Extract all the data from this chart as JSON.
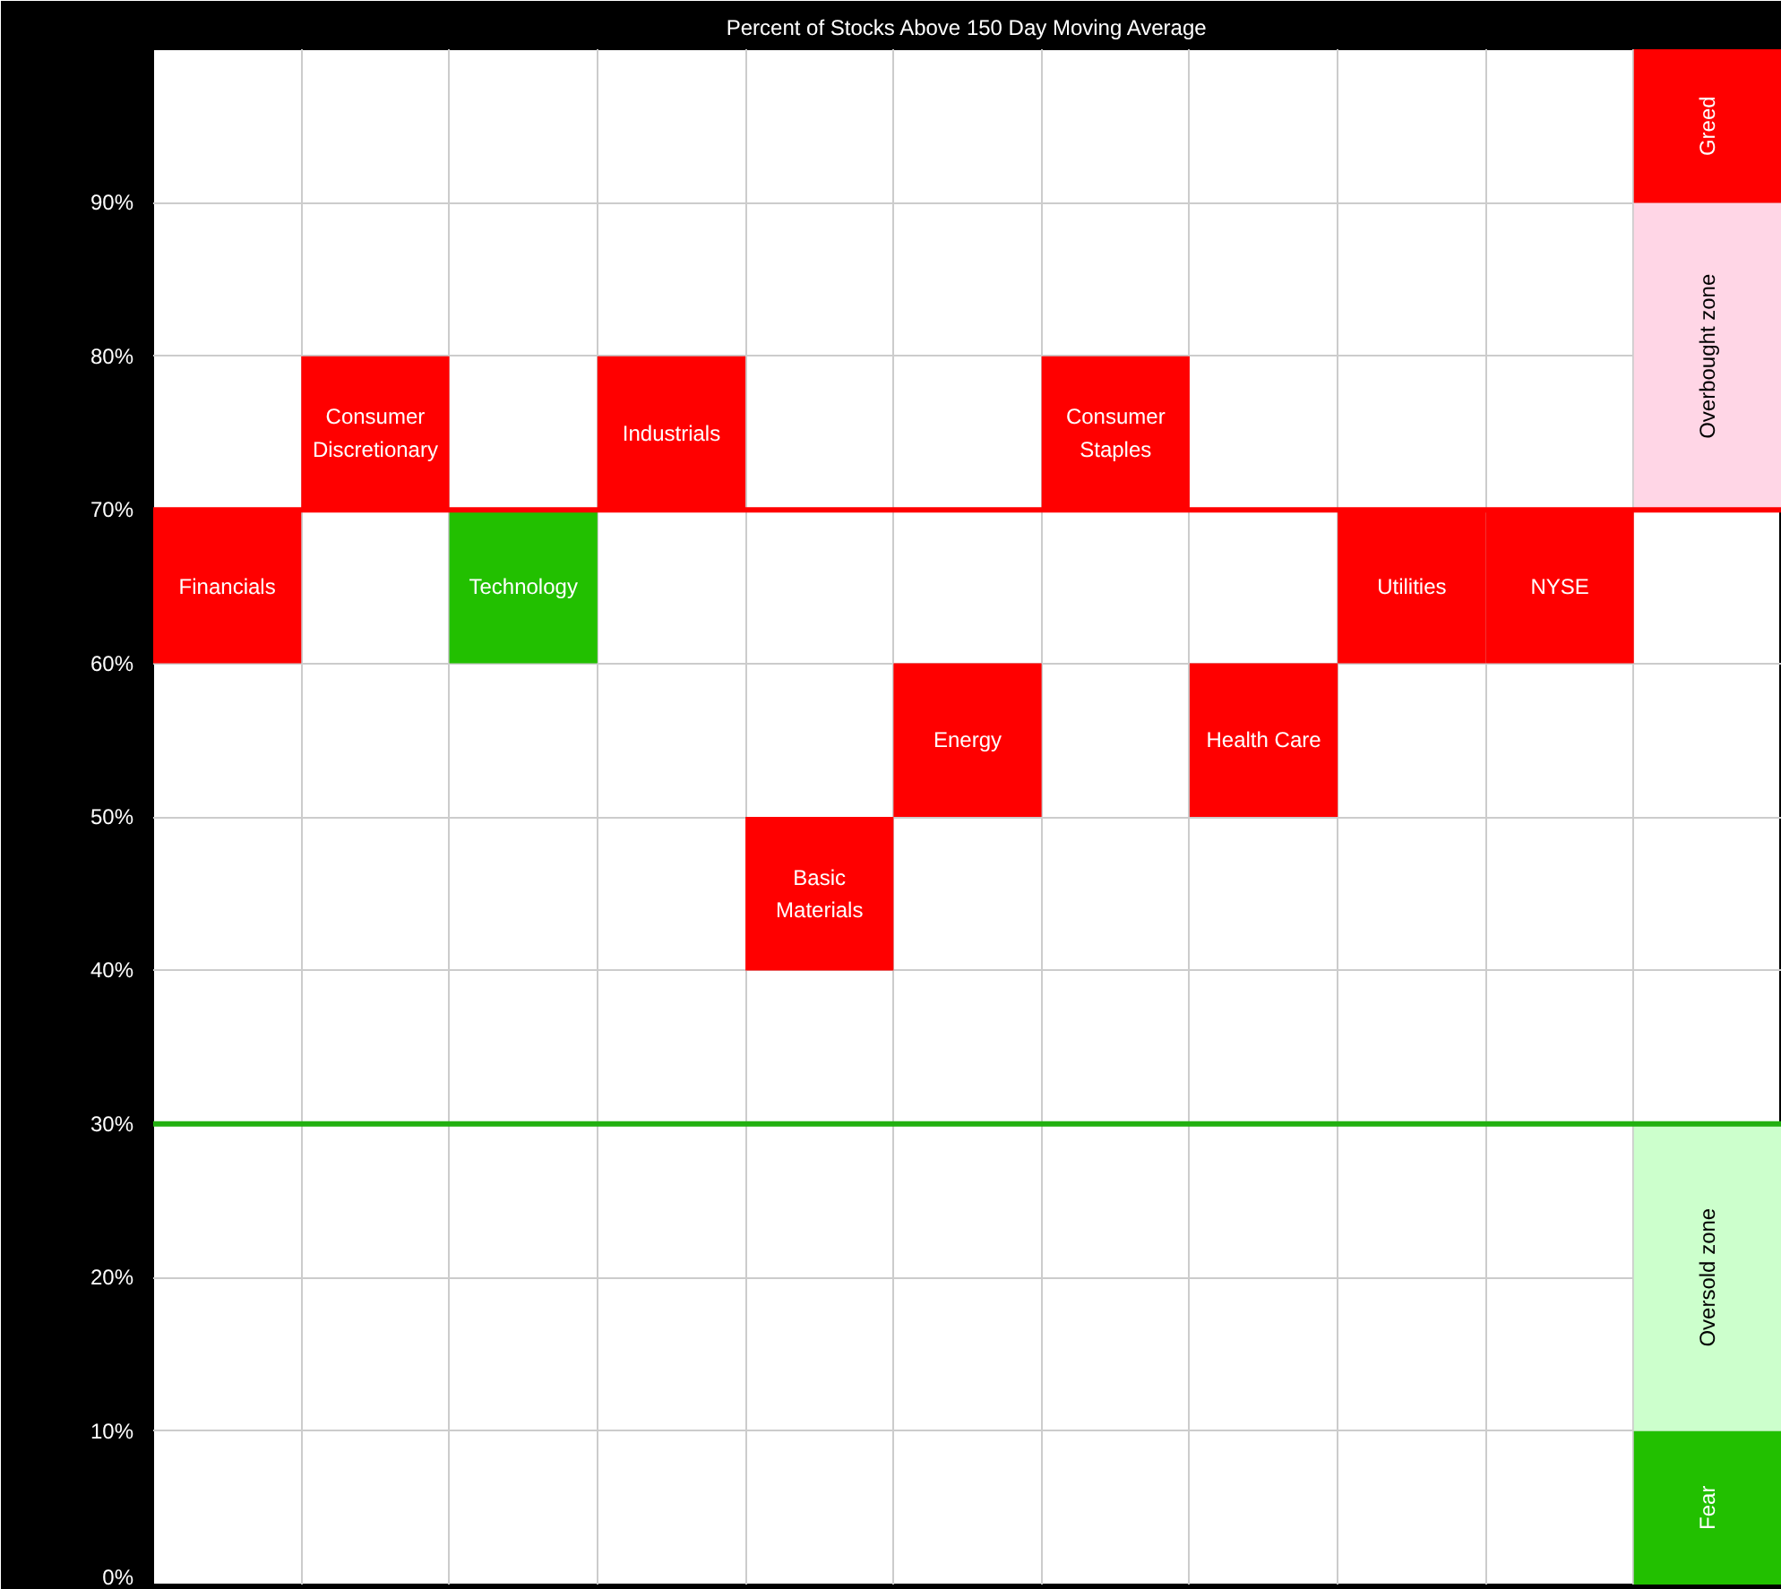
{
  "chart_data": {
    "type": "bar",
    "title": "Percent of Stocks Above 150 Day Moving Average",
    "categories": [
      "Financials",
      "Consumer Discretionary",
      "Technology",
      "Industrials",
      "Basic Materials",
      "Energy",
      "Consumer Staples",
      "Health Care",
      "Utilities",
      "NYSE",
      null
    ],
    "series": [
      {
        "values": [
          10,
          10,
          10,
          10,
          10,
          10,
          10,
          10,
          10,
          10,
          null
        ],
        "base": [
          60,
          70,
          60,
          70,
          40,
          50,
          70,
          50,
          60,
          60,
          null
        ],
        "colors": [
          "#ff0000",
          "#ff0000",
          "#22c000",
          "#ff0000",
          "#ff0000",
          "#ff0000",
          "#ff0000",
          "#ff0000",
          "#ff0000",
          "#ff0000",
          "#ff0000"
        ]
      },
      {
        "name": "Fear",
        "values": [
          null,
          null,
          null,
          null,
          null,
          null,
          null,
          null,
          null,
          null,
          10
        ],
        "base": [
          null,
          null,
          null,
          null,
          null,
          null,
          null,
          null,
          null,
          null,
          0
        ],
        "color": "#22c000"
      },
      {
        "name": "Oversold zone",
        "values": [
          null,
          null,
          null,
          null,
          null,
          null,
          null,
          null,
          null,
          null,
          20
        ],
        "base": [
          null,
          null,
          null,
          null,
          null,
          null,
          null,
          null,
          null,
          null,
          10
        ],
        "color": "#ccffcc"
      },
      {
        "name": "Overbought zone",
        "values": [
          null,
          null,
          null,
          null,
          null,
          null,
          null,
          null,
          null,
          null,
          20
        ],
        "base": [
          null,
          null,
          null,
          null,
          null,
          null,
          null,
          null,
          null,
          null,
          70
        ],
        "color": "#ffd6e6"
      },
      {
        "name": "Greed",
        "values": [
          null,
          null,
          null,
          null,
          null,
          null,
          null,
          null,
          null,
          null,
          10
        ],
        "base": [
          null,
          null,
          null,
          null,
          null,
          null,
          null,
          null,
          null,
          null,
          90
        ],
        "color": "#ff0000"
      }
    ],
    "ylim": [
      0,
      100
    ],
    "yticks": [
      {
        "value": 0,
        "label": "0%"
      },
      {
        "value": 10,
        "label": "10%"
      },
      {
        "value": 20,
        "label": "20%"
      },
      {
        "value": 30,
        "label": "30%"
      },
      {
        "value": 40,
        "label": "40%"
      },
      {
        "value": 50,
        "label": "50%"
      },
      {
        "value": 60,
        "label": "60%"
      },
      {
        "value": 70,
        "label": "70%"
      },
      {
        "value": 80,
        "label": "80%"
      },
      {
        "value": 90,
        "label": "90%"
      }
    ],
    "ref_lines": [
      {
        "axis": "y",
        "value": 70,
        "color": "#ff0000"
      },
      {
        "axis": "y",
        "value": 30,
        "color": "#22b010"
      }
    ],
    "grid": true,
    "tick_labels": "y"
  }
}
